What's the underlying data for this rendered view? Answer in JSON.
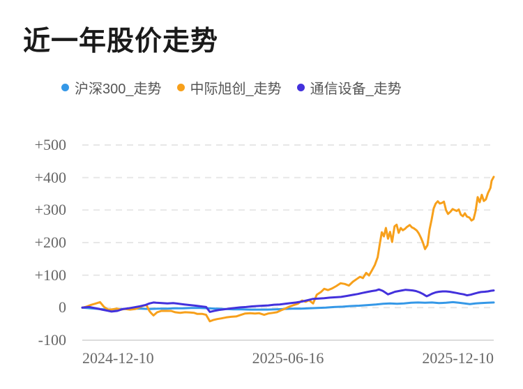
{
  "page": {
    "title": "近一年股价走势"
  },
  "legend": {
    "items": [
      {
        "label": "沪深300_走势",
        "color": "#3598e7"
      },
      {
        "label": "中际旭创_走势",
        "color": "#f7a01b"
      },
      {
        "label": "通信设备_走势",
        "color": "#4331dc"
      }
    ]
  },
  "colors": {
    "grid_dashed": "#e7e7e7",
    "axis_line": "#dcdcdc",
    "tick_text": "#666666",
    "legend_text": "#555555",
    "title_text": "#1a1a1a"
  },
  "chart_data": {
    "type": "line",
    "title": "近一年股价走势",
    "xlabel": "",
    "ylabel": "",
    "ylim": [
      -100,
      500
    ],
    "grid": "horizontal dashed, solid baseline at -100",
    "legend_position": "top",
    "y_ticks": [
      500,
      400,
      300,
      200,
      100,
      0,
      -100
    ],
    "y_tick_labels": [
      "+500",
      "+400",
      "+300",
      "+200",
      "+100",
      "0",
      "-100"
    ],
    "x_tick_labels": [
      "2024-12-10",
      "2025-06-16",
      "2025-12-10"
    ],
    "series": [
      {
        "name": "沪深300_走势",
        "color": "#3598e7",
        "points": [
          [
            0.0,
            0
          ],
          [
            0.02,
            -2
          ],
          [
            0.041,
            -4
          ],
          [
            0.061,
            -6
          ],
          [
            0.082,
            -5
          ],
          [
            0.102,
            -4
          ],
          [
            0.122,
            -3
          ],
          [
            0.143,
            -3
          ],
          [
            0.163,
            -4
          ],
          [
            0.184,
            -3
          ],
          [
            0.204,
            -3
          ],
          [
            0.224,
            -2
          ],
          [
            0.245,
            -2
          ],
          [
            0.265,
            -1
          ],
          [
            0.286,
            -1
          ],
          [
            0.306,
            -2
          ],
          [
            0.327,
            -3
          ],
          [
            0.347,
            -4
          ],
          [
            0.367,
            -5
          ],
          [
            0.388,
            -5
          ],
          [
            0.408,
            -6
          ],
          [
            0.429,
            -6
          ],
          [
            0.449,
            -6
          ],
          [
            0.469,
            -5
          ],
          [
            0.49,
            -4
          ],
          [
            0.51,
            -3
          ],
          [
            0.531,
            -3
          ],
          [
            0.551,
            -2
          ],
          [
            0.571,
            -1
          ],
          [
            0.592,
            0
          ],
          [
            0.612,
            2
          ],
          [
            0.633,
            3
          ],
          [
            0.653,
            5
          ],
          [
            0.673,
            6
          ],
          [
            0.694,
            8
          ],
          [
            0.714,
            10
          ],
          [
            0.731,
            12
          ],
          [
            0.748,
            13
          ],
          [
            0.765,
            12
          ],
          [
            0.782,
            13
          ],
          [
            0.799,
            15
          ],
          [
            0.816,
            16
          ],
          [
            0.833,
            15
          ],
          [
            0.85,
            16
          ],
          [
            0.867,
            14
          ],
          [
            0.884,
            15
          ],
          [
            0.901,
            17
          ],
          [
            0.915,
            15
          ],
          [
            0.929,
            13
          ],
          [
            0.942,
            11
          ],
          [
            0.956,
            13
          ],
          [
            0.969,
            14
          ],
          [
            0.985,
            15
          ],
          [
            1.0,
            16
          ]
        ]
      },
      {
        "name": "中际旭创_走势",
        "color": "#f7a01b",
        "points": [
          [
            0.0,
            0
          ],
          [
            0.01,
            3
          ],
          [
            0.02,
            8
          ],
          [
            0.031,
            12
          ],
          [
            0.043,
            17
          ],
          [
            0.053,
            2
          ],
          [
            0.063,
            -6
          ],
          [
            0.073,
            -5
          ],
          [
            0.083,
            -3
          ],
          [
            0.094,
            -6
          ],
          [
            0.104,
            -4
          ],
          [
            0.116,
            -6
          ],
          [
            0.129,
            -4
          ],
          [
            0.141,
            2
          ],
          [
            0.148,
            6
          ],
          [
            0.156,
            8
          ],
          [
            0.163,
            -10
          ],
          [
            0.167,
            -16
          ],
          [
            0.173,
            -24
          ],
          [
            0.182,
            -14
          ],
          [
            0.192,
            -10
          ],
          [
            0.204,
            -10
          ],
          [
            0.216,
            -10
          ],
          [
            0.226,
            -14
          ],
          [
            0.238,
            -16
          ],
          [
            0.25,
            -14
          ],
          [
            0.262,
            -15
          ],
          [
            0.272,
            -16
          ],
          [
            0.279,
            -19
          ],
          [
            0.291,
            -19
          ],
          [
            0.301,
            -22
          ],
          [
            0.31,
            -42
          ],
          [
            0.318,
            -38
          ],
          [
            0.328,
            -35
          ],
          [
            0.338,
            -33
          ],
          [
            0.35,
            -30
          ],
          [
            0.362,
            -28
          ],
          [
            0.374,
            -27
          ],
          [
            0.386,
            -22
          ],
          [
            0.396,
            -18
          ],
          [
            0.408,
            -17
          ],
          [
            0.42,
            -18
          ],
          [
            0.43,
            -17
          ],
          [
            0.442,
            -22
          ],
          [
            0.452,
            -18
          ],
          [
            0.463,
            -16
          ],
          [
            0.473,
            -14
          ],
          [
            0.483,
            -8
          ],
          [
            0.493,
            -3
          ],
          [
            0.503,
            3
          ],
          [
            0.514,
            8
          ],
          [
            0.524,
            12
          ],
          [
            0.534,
            22
          ],
          [
            0.543,
            18
          ],
          [
            0.551,
            23
          ],
          [
            0.561,
            13
          ],
          [
            0.57,
            40
          ],
          [
            0.58,
            48
          ],
          [
            0.588,
            58
          ],
          [
            0.597,
            54
          ],
          [
            0.607,
            59
          ],
          [
            0.617,
            66
          ],
          [
            0.628,
            75
          ],
          [
            0.638,
            73
          ],
          [
            0.648,
            68
          ],
          [
            0.658,
            80
          ],
          [
            0.667,
            88
          ],
          [
            0.675,
            95
          ],
          [
            0.682,
            91
          ],
          [
            0.69,
            107
          ],
          [
            0.697,
            99
          ],
          [
            0.704,
            115
          ],
          [
            0.711,
            131
          ],
          [
            0.718,
            155
          ],
          [
            0.723,
            195
          ],
          [
            0.728,
            232
          ],
          [
            0.733,
            219
          ],
          [
            0.738,
            245
          ],
          [
            0.743,
            212
          ],
          [
            0.748,
            233
          ],
          [
            0.753,
            202
          ],
          [
            0.759,
            250
          ],
          [
            0.764,
            255
          ],
          [
            0.769,
            230
          ],
          [
            0.774,
            245
          ],
          [
            0.779,
            238
          ],
          [
            0.784,
            242
          ],
          [
            0.789,
            248
          ],
          [
            0.796,
            254
          ],
          [
            0.801,
            247
          ],
          [
            0.806,
            244
          ],
          [
            0.813,
            237
          ],
          [
            0.818,
            228
          ],
          [
            0.823,
            215
          ],
          [
            0.828,
            200
          ],
          [
            0.833,
            180
          ],
          [
            0.839,
            192
          ],
          [
            0.844,
            240
          ],
          [
            0.849,
            270
          ],
          [
            0.854,
            305
          ],
          [
            0.859,
            320
          ],
          [
            0.864,
            327
          ],
          [
            0.869,
            320
          ],
          [
            0.874,
            322
          ],
          [
            0.879,
            326
          ],
          [
            0.884,
            300
          ],
          [
            0.889,
            288
          ],
          [
            0.895,
            295
          ],
          [
            0.9,
            303
          ],
          [
            0.905,
            300
          ],
          [
            0.91,
            297
          ],
          [
            0.915,
            302
          ],
          [
            0.92,
            286
          ],
          [
            0.925,
            281
          ],
          [
            0.93,
            290
          ],
          [
            0.935,
            280
          ],
          [
            0.941,
            277
          ],
          [
            0.946,
            268
          ],
          [
            0.951,
            272
          ],
          [
            0.956,
            297
          ],
          [
            0.961,
            340
          ],
          [
            0.966,
            324
          ],
          [
            0.971,
            347
          ],
          [
            0.976,
            328
          ],
          [
            0.981,
            333
          ],
          [
            0.986,
            352
          ],
          [
            0.992,
            368
          ],
          [
            0.995,
            390
          ],
          [
            1.0,
            402
          ]
        ]
      },
      {
        "name": "通信设备_走势",
        "color": "#4331dc",
        "points": [
          [
            0.0,
            0
          ],
          [
            0.017,
            2
          ],
          [
            0.034,
            -2
          ],
          [
            0.048,
            -6
          ],
          [
            0.06,
            -9
          ],
          [
            0.071,
            -12
          ],
          [
            0.085,
            -10
          ],
          [
            0.099,
            -4
          ],
          [
            0.112,
            -2
          ],
          [
            0.126,
            1
          ],
          [
            0.139,
            4
          ],
          [
            0.153,
            8
          ],
          [
            0.163,
            13
          ],
          [
            0.173,
            16
          ],
          [
            0.18,
            15
          ],
          [
            0.194,
            14
          ],
          [
            0.207,
            13
          ],
          [
            0.221,
            14
          ],
          [
            0.235,
            12
          ],
          [
            0.248,
            10
          ],
          [
            0.262,
            8
          ],
          [
            0.276,
            6
          ],
          [
            0.289,
            4
          ],
          [
            0.301,
            2
          ],
          [
            0.31,
            -13
          ],
          [
            0.32,
            -10
          ],
          [
            0.332,
            -7
          ],
          [
            0.344,
            -5
          ],
          [
            0.357,
            -3
          ],
          [
            0.371,
            -1
          ],
          [
            0.384,
            1
          ],
          [
            0.398,
            2
          ],
          [
            0.412,
            4
          ],
          [
            0.425,
            5
          ],
          [
            0.439,
            6
          ],
          [
            0.452,
            7
          ],
          [
            0.466,
            9
          ],
          [
            0.48,
            10
          ],
          [
            0.493,
            12
          ],
          [
            0.507,
            14
          ],
          [
            0.52,
            16
          ],
          [
            0.534,
            19
          ],
          [
            0.548,
            23
          ],
          [
            0.561,
            27
          ],
          [
            0.575,
            28
          ],
          [
            0.588,
            29
          ],
          [
            0.602,
            31
          ],
          [
            0.616,
            32
          ],
          [
            0.629,
            33
          ],
          [
            0.643,
            36
          ],
          [
            0.656,
            39
          ],
          [
            0.67,
            42
          ],
          [
            0.68,
            45
          ],
          [
            0.692,
            48
          ],
          [
            0.704,
            51
          ],
          [
            0.714,
            53
          ],
          [
            0.721,
            56
          ],
          [
            0.73,
            52
          ],
          [
            0.736,
            47
          ],
          [
            0.743,
            41
          ],
          [
            0.752,
            45
          ],
          [
            0.76,
            49
          ],
          [
            0.769,
            51
          ],
          [
            0.777,
            53
          ],
          [
            0.786,
            55
          ],
          [
            0.794,
            54
          ],
          [
            0.803,
            53
          ],
          [
            0.811,
            51
          ],
          [
            0.82,
            47
          ],
          [
            0.828,
            42
          ],
          [
            0.837,
            35
          ],
          [
            0.844,
            39
          ],
          [
            0.85,
            43
          ],
          [
            0.859,
            47
          ],
          [
            0.867,
            49
          ],
          [
            0.876,
            50
          ],
          [
            0.884,
            50
          ],
          [
            0.893,
            49
          ],
          [
            0.901,
            47
          ],
          [
            0.91,
            45
          ],
          [
            0.918,
            43
          ],
          [
            0.927,
            41
          ],
          [
            0.935,
            38
          ],
          [
            0.944,
            40
          ],
          [
            0.952,
            43
          ],
          [
            0.961,
            46
          ],
          [
            0.969,
            48
          ],
          [
            0.978,
            49
          ],
          [
            0.986,
            50
          ],
          [
            0.993,
            52
          ],
          [
            1.0,
            53
          ]
        ]
      }
    ]
  }
}
